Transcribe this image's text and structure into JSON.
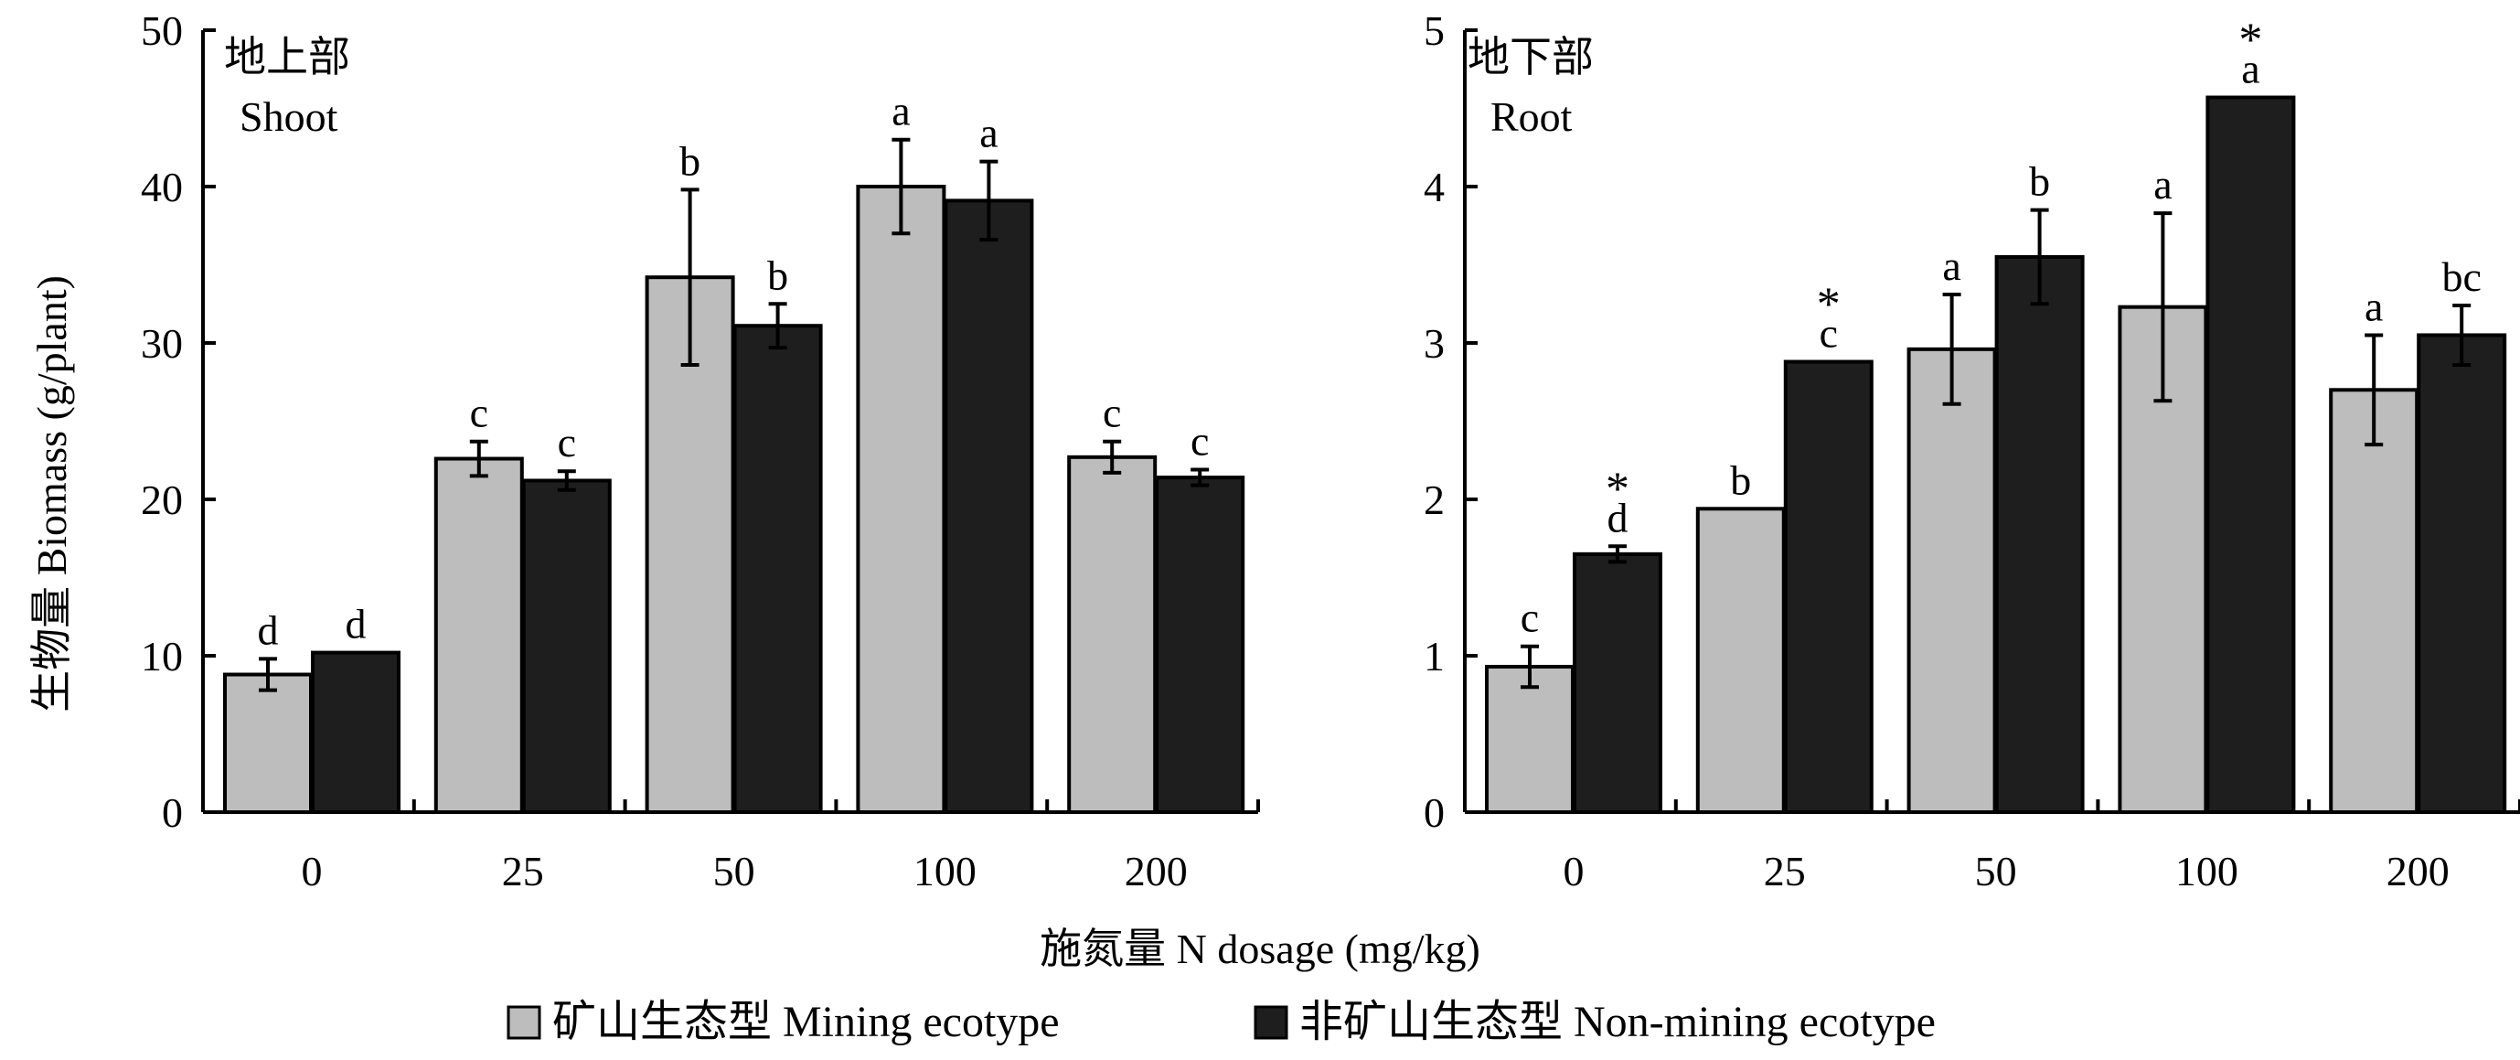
{
  "colors": {
    "mining": "#bdbdbd",
    "non_mining": "#1e1e1e",
    "axis": "#000000",
    "background": "#ffffff"
  },
  "x_axis_title": "施氮量 N dosage (mg/kg)",
  "legend": [
    {
      "label": "矿山生态型 Mining ecotype",
      "color": "#bdbdbd"
    },
    {
      "label": "非矿山生态型 Non-mining ecotype",
      "color": "#1e1e1e"
    }
  ],
  "chart_data": [
    {
      "type": "bar",
      "title": "地上部",
      "subtitle": "Shoot",
      "ylabel": "生物量 Biomass (g/plant)",
      "xlabel": "施氮量 N dosage (mg/kg)",
      "categories": [
        "0",
        "25",
        "50",
        "100",
        "200"
      ],
      "ylim": [
        0,
        50
      ],
      "yticks": [
        0,
        10,
        20,
        30,
        40,
        50
      ],
      "series": [
        {
          "name": "矿山生态型 Mining ecotype",
          "values": [
            8.8,
            22.6,
            34.2,
            40.0,
            22.7
          ],
          "errors": [
            1.0,
            1.1,
            5.6,
            3.0,
            1.0
          ],
          "labels": [
            "d",
            "c",
            "b",
            "a",
            "c"
          ],
          "stars": [
            "",
            "",
            "",
            "",
            ""
          ]
        },
        {
          "name": "非矿山生态型 Non-mining ecotype",
          "values": [
            10.2,
            21.2,
            31.1,
            39.1,
            21.4
          ],
          "errors": [
            0.0,
            0.6,
            1.4,
            2.5,
            0.5
          ],
          "labels": [
            "d",
            "c",
            "b",
            "a",
            "c"
          ],
          "stars": [
            "",
            "",
            "",
            "",
            ""
          ]
        }
      ]
    },
    {
      "type": "bar",
      "title": "地下部",
      "subtitle": "Root",
      "ylabel": "",
      "xlabel": "施氮量 N dosage (mg/kg)",
      "categories": [
        "0",
        "25",
        "50",
        "100",
        "200"
      ],
      "ylim": [
        0,
        5
      ],
      "yticks": [
        0,
        1,
        2,
        3,
        4,
        5
      ],
      "series": [
        {
          "name": "矿山生态型 Mining ecotype",
          "values": [
            0.93,
            1.94,
            2.96,
            3.23,
            2.7
          ],
          "errors": [
            0.13,
            0.0,
            0.35,
            0.6,
            0.35
          ],
          "labels": [
            "c",
            "b",
            "a",
            "a",
            "a"
          ],
          "stars": [
            "",
            "",
            "",
            "",
            ""
          ]
        },
        {
          "name": "非矿山生态型 Non-mining ecotype",
          "values": [
            1.65,
            2.88,
            3.55,
            4.57,
            3.05
          ],
          "errors": [
            0.05,
            0.0,
            0.3,
            0.0,
            0.19
          ],
          "labels": [
            "d",
            "c",
            "b",
            "a",
            "bc"
          ],
          "stars": [
            "*",
            "*",
            "",
            "*",
            ""
          ]
        }
      ]
    }
  ]
}
